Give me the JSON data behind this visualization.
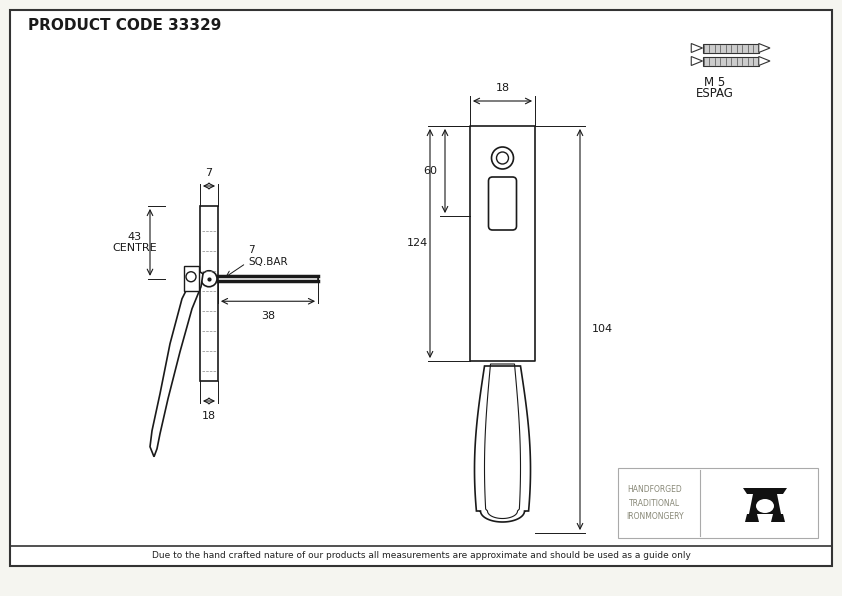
{
  "title": "PRODUCT CODE 33329",
  "bg_color": "#f5f5f0",
  "border_color": "#333333",
  "line_color": "#1a1a1a",
  "dim_color": "#1a1a1a",
  "footer_text": "Due to the hand crafted nature of our products all measurements are approximate and should be used as a guide only",
  "m5_label": "M 5",
  "espag_label": "ESPAG",
  "hti_label": "HANDFORGED\nTRADITIONAL\nIRONMONGERY",
  "dim_7_top": "7",
  "dim_7_sq": "7\nSQ.BAR",
  "dim_43": "43\nCENTRE",
  "dim_38": "38",
  "dim_18_bottom": "18",
  "dim_18_top": "18",
  "dim_60": "60",
  "dim_124": "124",
  "dim_104": "104"
}
